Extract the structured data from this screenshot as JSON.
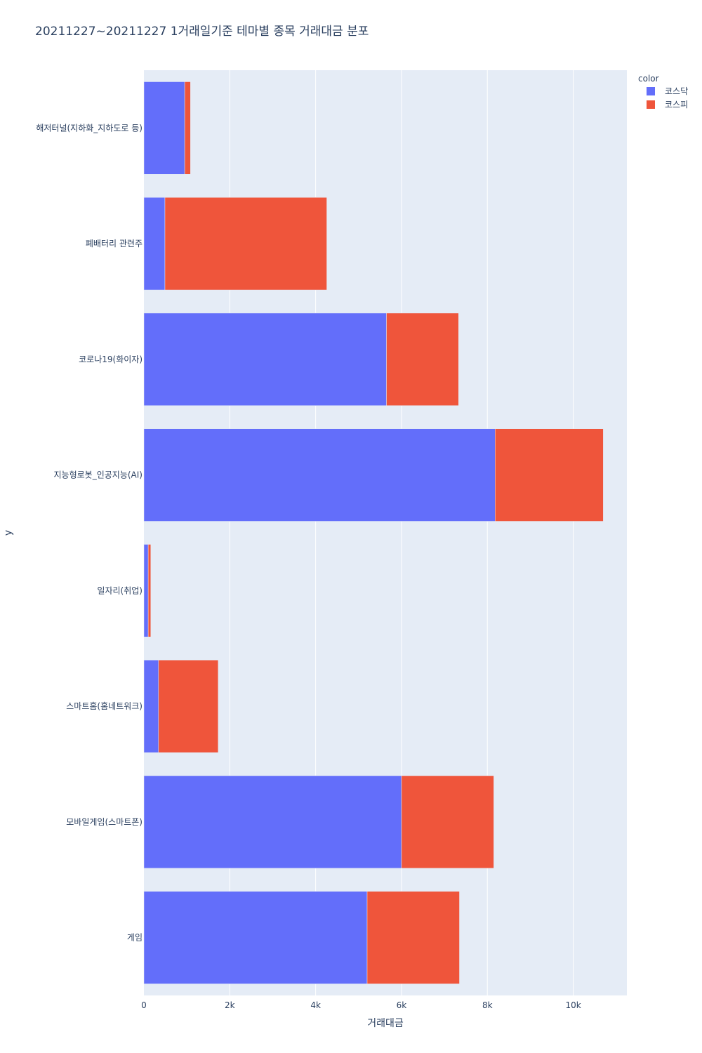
{
  "chart_data": {
    "type": "bar",
    "orientation": "horizontal",
    "barmode": "stack",
    "title": "20211227~20211227 1거래일기준 테마별 종목 거래대금 분포",
    "xlabel": "거래대금",
    "ylabel": "y",
    "xlim": [
      0,
      11250
    ],
    "x_ticks": [
      {
        "value": 0,
        "label": "0"
      },
      {
        "value": 2000,
        "label": "2k"
      },
      {
        "value": 4000,
        "label": "4k"
      },
      {
        "value": 6000,
        "label": "6k"
      },
      {
        "value": 8000,
        "label": "8k"
      },
      {
        "value": 10000,
        "label": "10k"
      }
    ],
    "grid": true,
    "legend": {
      "title": "color",
      "position": "top-right"
    },
    "categories": [
      "해저터널(지하화_지하도로 등)",
      "폐배터리 관련주",
      "코로나19(화이자)",
      "지능형로봇_인공지능(AI)",
      "일자리(취업)",
      "스마트홈(홈네트워크)",
      "모바일게임(스마트폰)",
      "게임"
    ],
    "series": [
      {
        "name": "코스닥",
        "color": "#636efa",
        "values": [
          950,
          490,
          5650,
          8180,
          100,
          340,
          6000,
          5200
        ]
      },
      {
        "name": "코스피",
        "color": "#ef553b",
        "values": [
          135,
          3770,
          1680,
          2520,
          60,
          1390,
          2150,
          2150
        ]
      }
    ]
  }
}
